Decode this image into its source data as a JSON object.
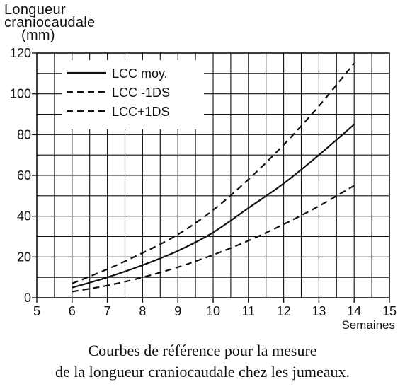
{
  "chart_data": {
    "type": "line",
    "ylabel_lines": [
      "Longueur",
      "craniocaudale",
      "(mm)"
    ],
    "xlabel": "Semaines",
    "xlim": [
      5,
      15
    ],
    "ylim": [
      0,
      120
    ],
    "x_ticks": [
      5,
      6,
      7,
      8,
      9,
      10,
      11,
      12,
      13,
      14,
      15
    ],
    "y_ticks": [
      0,
      20,
      40,
      60,
      80,
      100,
      120
    ],
    "grid": true,
    "legend_position": "top-left",
    "series": [
      {
        "name": "LCC moy.",
        "style": "solid",
        "x": [
          6,
          7,
          8,
          9,
          10,
          11,
          12,
          13,
          14
        ],
        "y": [
          5,
          10,
          16,
          23,
          32,
          44,
          56,
          70,
          85
        ]
      },
      {
        "name": "LCC -1DS",
        "style": "dashed",
        "x": [
          6,
          7,
          8,
          9,
          10,
          11,
          12,
          13,
          14
        ],
        "y": [
          3,
          6,
          10,
          15,
          21,
          28,
          36,
          45,
          55
        ]
      },
      {
        "name": "LCC+1DS",
        "style": "dashed",
        "x": [
          6,
          7,
          8,
          9,
          10,
          11,
          12,
          13,
          14
        ],
        "y": [
          7,
          14,
          22,
          31,
          43,
          58,
          75,
          94,
          115
        ]
      }
    ]
  },
  "caption": {
    "line1": "Courbes de référence pour la mesure",
    "line2": "de la longueur craniocaudale chez les jumeaux."
  },
  "colors": {
    "ink": "#111111",
    "background": "#ffffff"
  }
}
